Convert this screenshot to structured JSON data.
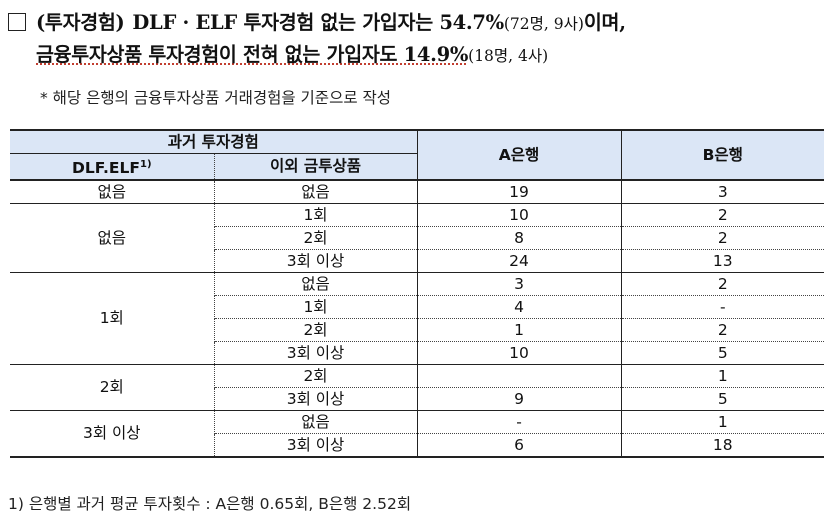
{
  "heading": {
    "line1_label": "(투자경험)",
    "line1_a": "DLF · ELF 투자경험 없는 가입자는 54.7%",
    "line1_note": "(72명, 9사)",
    "line1_end": "이며,",
    "line2_a": "금융투자상품 투자경험이 전혀 없는 가입자도 14.9%",
    "line2_note": "(18명, 4사)"
  },
  "remark": "* 해당 은행의 금융투자상품 거래경험을 기준으로 작성",
  "table": {
    "header_past": "과거 투자경험",
    "header_dlf": "DLF.ELF",
    "header_dlf_sup": "1)",
    "header_other": "이외 금투상품",
    "header_a": "A은행",
    "header_b": "B은행",
    "groups": [
      {
        "label": "없음",
        "rows": [
          {
            "other": "없음",
            "a": "19",
            "b": "3"
          }
        ]
      },
      {
        "label": "없음",
        "rows": [
          {
            "other": "1회",
            "a": "10",
            "b": "2"
          },
          {
            "other": "2회",
            "a": "8",
            "b": "2"
          },
          {
            "other": "3회 이상",
            "a": "24",
            "b": "13"
          }
        ]
      },
      {
        "label": "1회",
        "rows": [
          {
            "other": "없음",
            "a": "3",
            "b": "2"
          },
          {
            "other": "1회",
            "a": "4",
            "b": "-"
          },
          {
            "other": "2회",
            "a": "1",
            "b": "2"
          },
          {
            "other": "3회 이상",
            "a": "10",
            "b": "5"
          }
        ]
      },
      {
        "label": "2회",
        "rows": [
          {
            "other": "2회",
            "a": "",
            "b": "1"
          },
          {
            "other": "3회 이상",
            "a": "9",
            "b": "5"
          }
        ]
      },
      {
        "label": "3회 이상",
        "rows": [
          {
            "other": "없음",
            "a": "-",
            "b": "1"
          },
          {
            "other": "3회 이상",
            "a": "6",
            "b": "18"
          }
        ]
      }
    ]
  },
  "footnote": "1) 은행별 과거 평균 투자횟수 : A은행 0.65회, B은행 2.52회"
}
